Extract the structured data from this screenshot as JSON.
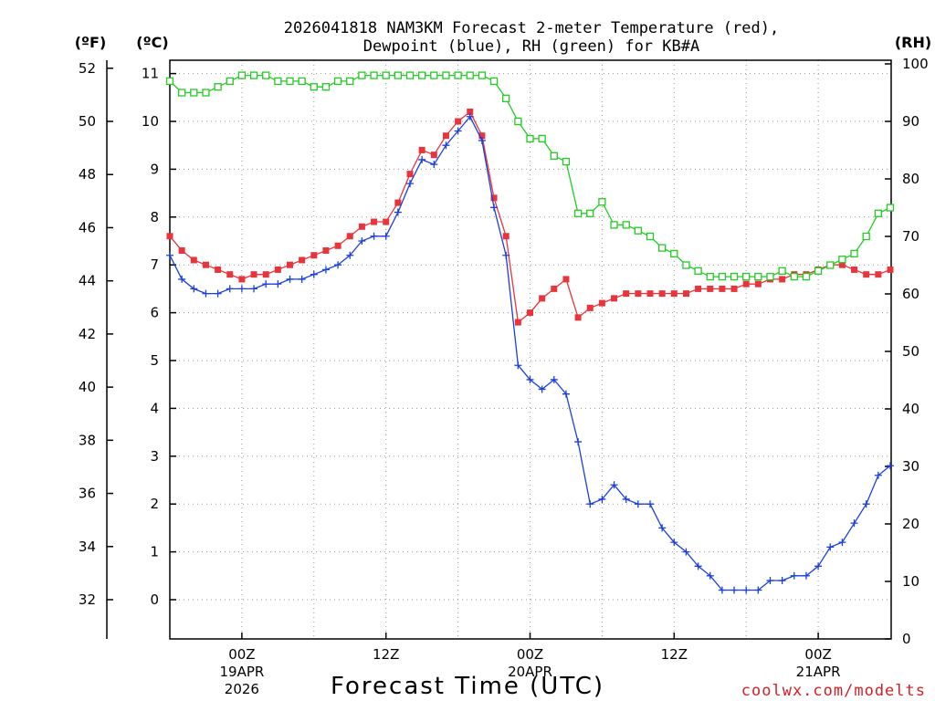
{
  "title": {
    "line1": "2026041818 NAM3KM Forecast 2-meter Temperature (red),",
    "line2": "Dewpoint (blue), RH (green) for KB#A"
  },
  "axis_labels": {
    "fahrenheit": "(ºF)",
    "celsius": "(ºC)",
    "rh": "(RH)"
  },
  "x_axis_title": "Forecast Time (UTC)",
  "watermark": "coolwx.com/modelts",
  "x_ticks": [
    {
      "label": "00Z",
      "sub1": "19APR",
      "sub2": "2026",
      "hour": 6
    },
    {
      "label": "12Z",
      "sub1": "",
      "sub2": "",
      "hour": 18
    },
    {
      "label": "00Z",
      "sub1": "20APR",
      "sub2": "",
      "hour": 30
    },
    {
      "label": "12Z",
      "sub1": "",
      "sub2": "",
      "hour": 42
    },
    {
      "label": "00Z",
      "sub1": "21APR",
      "sub2": "",
      "hour": 54
    }
  ],
  "colors": {
    "temperature": "#e8343a",
    "dewpoint": "#1a3fe0",
    "rh": "#22cc22",
    "watermark": "#d0202a",
    "axis": "#000000"
  },
  "chart_data": {
    "type": "line",
    "title": "2026041818 NAM3KM Forecast 2-meter Temperature (red), Dewpoint (blue), RH (green) for KB#A",
    "xlabel": "Forecast Time (UTC)",
    "ylabel_left_outer": "(ºF)",
    "ylabel_left_inner": "(ºC)",
    "ylabel_right": "(RH)",
    "x_unit": "forecast hours since 2026-04-18 18Z",
    "xlim": [
      0,
      60
    ],
    "ylim_celsius": [
      -0.8,
      11.3
    ],
    "ylim_rh": [
      0,
      100
    ],
    "fahrenheit_ticks": [
      32,
      34,
      36,
      38,
      40,
      42,
      44,
      46,
      48,
      50,
      52
    ],
    "celsius_ticks": [
      0,
      1,
      2,
      3,
      4,
      5,
      6,
      7,
      8,
      9,
      10,
      11
    ],
    "rh_ticks": [
      0,
      10,
      20,
      30,
      40,
      50,
      60,
      70,
      80,
      90,
      100
    ],
    "series": [
      {
        "name": "2-meter Temperature",
        "axis": "celsius",
        "color": "red",
        "marker": "filled-square",
        "values": [
          7.6,
          7.3,
          7.1,
          7.0,
          6.9,
          6.8,
          6.7,
          6.8,
          6.8,
          6.9,
          7.0,
          7.1,
          7.2,
          7.3,
          7.4,
          7.6,
          7.8,
          7.9,
          7.9,
          8.3,
          8.9,
          9.4,
          9.3,
          9.7,
          10.0,
          10.2,
          9.7,
          8.4,
          7.6,
          5.8,
          6.0,
          6.3,
          6.5,
          6.7,
          5.9,
          6.1,
          6.2,
          6.3,
          6.4,
          6.4,
          6.4,
          6.4,
          6.4,
          6.4,
          6.5,
          6.5,
          6.5,
          6.5,
          6.6,
          6.6,
          6.7,
          6.7,
          6.8,
          6.8,
          6.9,
          7.0,
          7.0,
          6.9,
          6.8,
          6.8,
          6.9
        ]
      },
      {
        "name": "Dewpoint",
        "axis": "celsius",
        "color": "blue",
        "marker": "plus",
        "values": [
          7.2,
          6.7,
          6.5,
          6.4,
          6.4,
          6.5,
          6.5,
          6.5,
          6.6,
          6.6,
          6.7,
          6.7,
          6.8,
          6.9,
          7.0,
          7.2,
          7.5,
          7.6,
          7.6,
          8.1,
          8.7,
          9.2,
          9.1,
          9.5,
          9.8,
          10.1,
          9.6,
          8.2,
          7.2,
          4.9,
          4.6,
          4.4,
          4.6,
          4.3,
          3.3,
          2.0,
          2.1,
          2.4,
          2.1,
          2.0,
          2.0,
          1.5,
          1.2,
          1.0,
          0.7,
          0.5,
          0.2,
          0.2,
          0.2,
          0.2,
          0.4,
          0.4,
          0.5,
          0.5,
          0.7,
          1.1,
          1.2,
          1.6,
          2.0,
          2.6,
          2.8
        ]
      },
      {
        "name": "RH",
        "axis": "rh",
        "color": "green",
        "marker": "open-square",
        "values": [
          97,
          95,
          95,
          95,
          96,
          97,
          98,
          98,
          98,
          97,
          97,
          97,
          96,
          96,
          97,
          97,
          98,
          98,
          98,
          98,
          98,
          98,
          98,
          98,
          98,
          98,
          98,
          97,
          94,
          90,
          87,
          87,
          84,
          83,
          74,
          74,
          76,
          72,
          72,
          71,
          70,
          68,
          67,
          65,
          64,
          63,
          63,
          63,
          63,
          63,
          63,
          64,
          63,
          63,
          64,
          65,
          66,
          67,
          70,
          74,
          75
        ]
      }
    ]
  }
}
